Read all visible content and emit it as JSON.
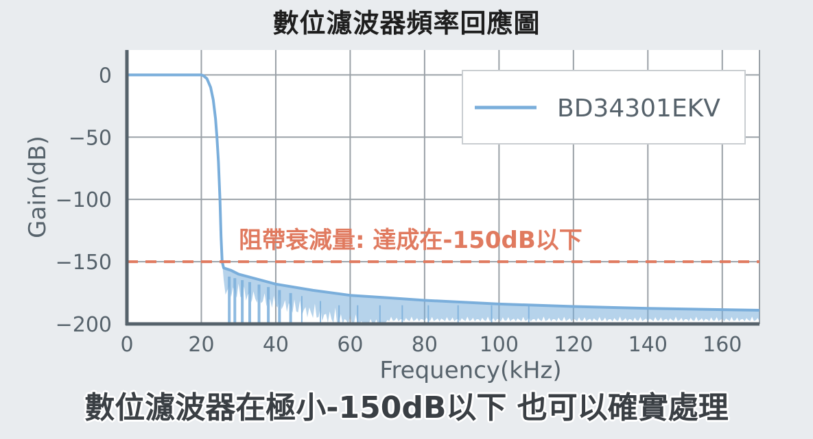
{
  "title": "數位濾波器頻率回應圖",
  "caption": "數位濾波器在極小-150dB以下 也可以確實處理",
  "colors": {
    "series": "#7aaedb",
    "threshold": "#e07a5f",
    "annotation": "#e07a5f",
    "grid": "#9aa1a7",
    "axis": "#56626b",
    "background": "#ffffff"
  },
  "chart_data": {
    "type": "line",
    "xlabel": "Frequency(kHz)",
    "ylabel": "Gain(dB)",
    "xlim": [
      0,
      170
    ],
    "ylim": [
      -200,
      20
    ],
    "xticks": [
      "0",
      "20",
      "40",
      "60",
      "80",
      "100",
      "120",
      "140",
      "160"
    ],
    "yticks": [
      "0",
      "−50",
      "−100",
      "−150",
      "−200"
    ],
    "grid": true,
    "legend_position": "top-right",
    "series": [
      {
        "name": "BD34301EKV",
        "x": [
          0,
          20,
          20.5,
          21.5,
          22.5,
          23.2,
          23.8,
          24.2,
          24.6,
          25.0,
          25.3,
          25.6,
          26,
          28,
          30,
          35,
          40,
          50,
          60,
          70,
          80,
          100,
          120,
          140,
          160,
          170
        ],
        "y": [
          0,
          0,
          -0.5,
          -3,
          -10,
          -20,
          -35,
          -50,
          -70,
          -100,
          -130,
          -150,
          -155,
          -157,
          -160,
          -164,
          -168,
          -173,
          -177,
          -179,
          -181,
          -184,
          -186,
          -187.5,
          -188.5,
          -189
        ]
      }
    ],
    "threshold": {
      "y": -150,
      "label": "阻帶衰減量: 達成在-150dB以下"
    }
  }
}
